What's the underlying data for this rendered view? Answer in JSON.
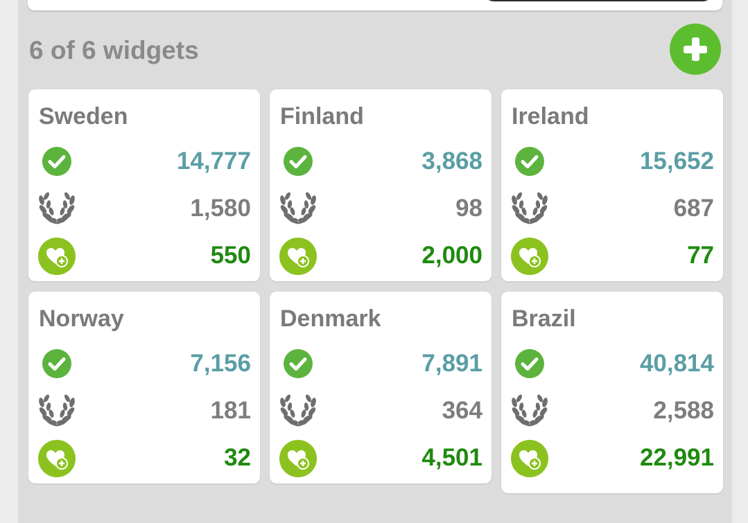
{
  "header": {
    "title": "6 of 6 widgets",
    "add_icon": "plus-icon",
    "accent_color": "#5cbe2f"
  },
  "icons": {
    "completed": "check-circle-icon",
    "awards": "laurel-wreath-icon",
    "donations": "heart-plus-icon"
  },
  "colors": {
    "completed_value": "#5a9ea4",
    "awards_value": "#7d7d7d",
    "donations_value": "#1f8a10"
  },
  "widgets": [
    {
      "name": "Sweden",
      "completed": "14,777",
      "awards": "1,580",
      "donations": "550"
    },
    {
      "name": "Finland",
      "completed": "3,868",
      "awards": "98",
      "donations": "2,000"
    },
    {
      "name": "Ireland",
      "completed": "15,652",
      "awards": "687",
      "donations": "77"
    },
    {
      "name": "Norway",
      "completed": "7,156",
      "awards": "181",
      "donations": "32"
    },
    {
      "name": "Denmark",
      "completed": "7,891",
      "awards": "364",
      "donations": "4,501"
    },
    {
      "name": "Brazil",
      "completed": "40,814",
      "awards": "2,588",
      "donations": "22,991"
    }
  ]
}
